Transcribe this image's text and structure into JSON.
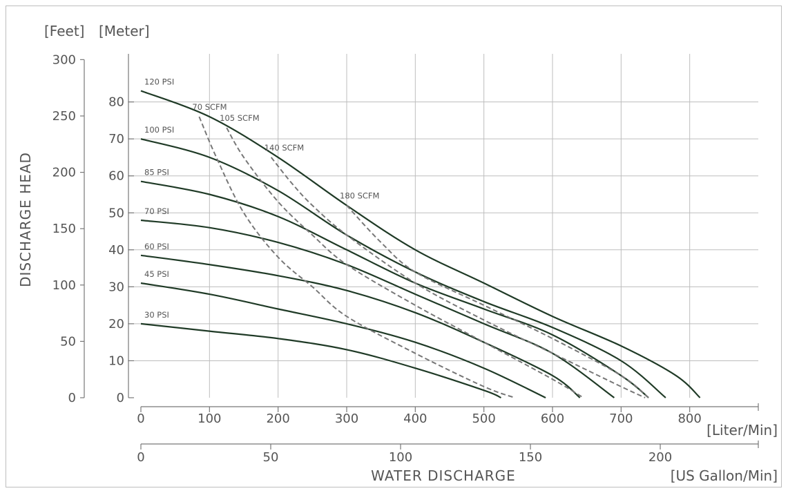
{
  "chart_data": {
    "type": "line",
    "ylabel": "DISCHARGE HEAD",
    "xlabel": "WATER DISCHARGE",
    "y_units": {
      "feet": "[Feet]",
      "meter": "[Meter]"
    },
    "x_units": {
      "liter": "[Liter/Min]",
      "gallon": "[US Gallon/Min]"
    },
    "xlim": [
      0,
      900
    ],
    "ylim": [
      0,
      93
    ],
    "grid": true,
    "x_ticks_liter": [
      0,
      100,
      200,
      300,
      400,
      500,
      600,
      700,
      800
    ],
    "x_ticks_gallon": [
      0,
      50,
      100,
      150,
      200
    ],
    "y_ticks_meter": [
      0,
      10,
      20,
      30,
      40,
      50,
      60,
      70,
      80
    ],
    "y_ticks_feet": [
      0,
      50,
      100,
      150,
      200,
      250,
      300
    ],
    "series": [
      {
        "name": "120 PSI",
        "style": "solid",
        "x": [
          0,
          100,
          200,
          300,
          400,
          500,
          600,
          700,
          780,
          815
        ],
        "y": [
          83,
          76,
          65,
          52,
          40,
          31,
          22,
          14,
          6,
          0
        ]
      },
      {
        "name": "100 PSI",
        "style": "solid",
        "x": [
          0,
          100,
          200,
          300,
          400,
          500,
          600,
          700,
          765
        ],
        "y": [
          70,
          65,
          56,
          44,
          34,
          26,
          19,
          10,
          0
        ]
      },
      {
        "name": "85 PSI",
        "style": "solid",
        "x": [
          0,
          100,
          200,
          300,
          400,
          500,
          600,
          700,
          740
        ],
        "y": [
          58.5,
          55,
          49,
          40,
          31,
          24,
          17,
          6,
          0
        ]
      },
      {
        "name": "70 PSI",
        "style": "solid",
        "x": [
          0,
          100,
          200,
          300,
          400,
          500,
          600,
          690
        ],
        "y": [
          48,
          46,
          42,
          36,
          28,
          20,
          12,
          0
        ]
      },
      {
        "name": "60 PSI",
        "style": "solid",
        "x": [
          0,
          100,
          200,
          300,
          400,
          500,
          600,
          640
        ],
        "y": [
          38.5,
          36,
          33,
          29,
          23,
          15,
          6,
          0
        ]
      },
      {
        "name": "45 PSI",
        "style": "solid",
        "x": [
          0,
          100,
          200,
          300,
          400,
          500,
          590
        ],
        "y": [
          31,
          28,
          24,
          20,
          15,
          8,
          0
        ]
      },
      {
        "name": "30 PSI",
        "style": "solid",
        "x": [
          0,
          100,
          200,
          300,
          400,
          500,
          525
        ],
        "y": [
          20,
          18,
          16,
          13,
          8,
          2,
          0
        ]
      },
      {
        "name": "70 SCFM",
        "style": "dashed",
        "x": [
          85,
          110,
          150,
          200,
          250,
          300,
          400,
          500,
          545
        ],
        "y": [
          76,
          65,
          50,
          38,
          30,
          22,
          12,
          3,
          0
        ]
      },
      {
        "name": "105 SCFM",
        "style": "dashed",
        "x": [
          125,
          150,
          200,
          250,
          300,
          400,
          500,
          600,
          645
        ],
        "y": [
          73,
          65,
          53,
          44,
          36,
          25,
          15,
          5,
          0
        ]
      },
      {
        "name": "140 SCFM",
        "style": "dashed",
        "x": [
          190,
          220,
          250,
          300,
          400,
          500,
          600,
          700,
          735
        ],
        "y": [
          65,
          58,
          52,
          44,
          31,
          21,
          12,
          3,
          0
        ]
      },
      {
        "name": "180 SCFM",
        "style": "dashed",
        "x": [
          300,
          350,
          400,
          500,
          600,
          700,
          740
        ],
        "y": [
          52,
          42,
          34,
          25,
          16,
          6,
          0
        ]
      }
    ]
  }
}
